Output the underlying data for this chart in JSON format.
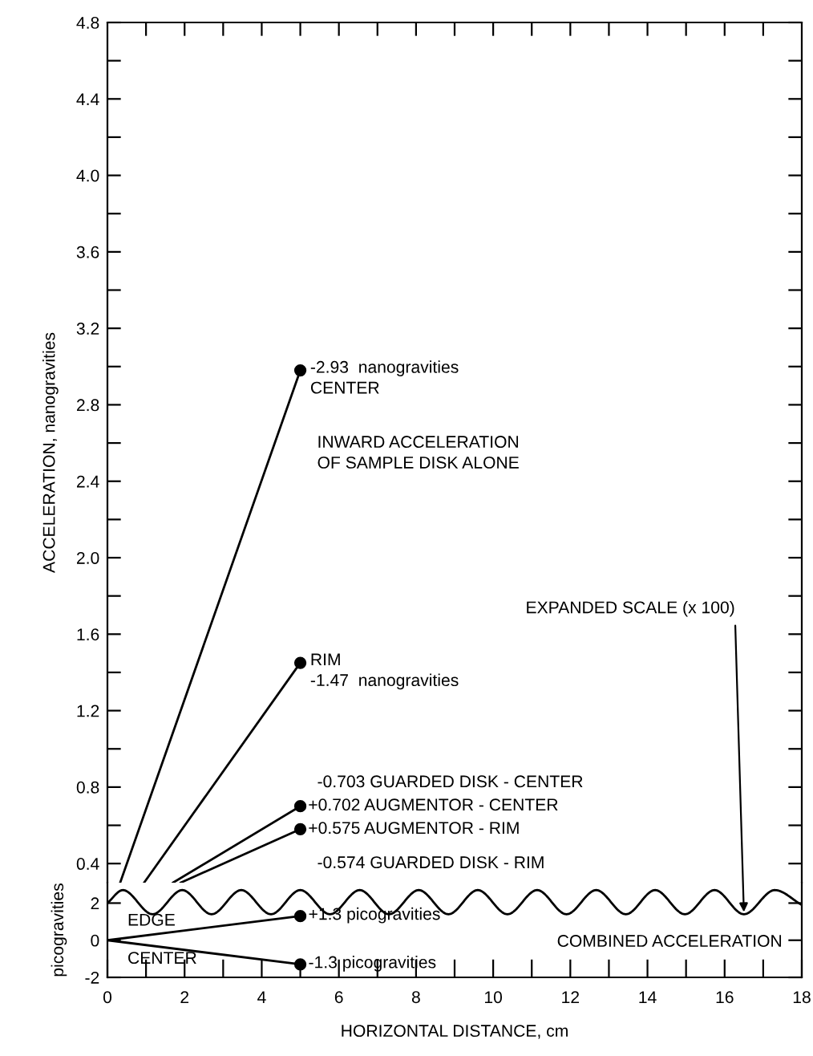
{
  "chart_data": [
    {
      "type": "line",
      "ylabel": "ACCELERATION, nanogravities",
      "xlim": [
        0,
        18
      ],
      "ylim": [
        0.3,
        4.8
      ],
      "tick_labels": "y",
      "grid": false,
      "legend": false,
      "xticks": [
        {
          "value": 1,
          "label": null
        },
        {
          "value": 2,
          "label": null
        },
        {
          "value": 3,
          "label": null
        },
        {
          "value": 4,
          "label": null
        },
        {
          "value": 5,
          "label": null
        },
        {
          "value": 6,
          "label": null
        },
        {
          "value": 7,
          "label": null
        },
        {
          "value": 8,
          "label": null
        },
        {
          "value": 9,
          "label": null
        },
        {
          "value": 10,
          "label": null
        },
        {
          "value": 11,
          "label": null
        },
        {
          "value": 12,
          "label": null
        },
        {
          "value": 13,
          "label": null
        },
        {
          "value": 14,
          "label": null
        },
        {
          "value": 15,
          "label": null
        },
        {
          "value": 16,
          "label": null
        },
        {
          "value": 17,
          "label": null
        }
      ],
      "yticks": [
        0.4,
        {
          "value": 0.6,
          "label": null
        },
        0.8,
        {
          "value": 1.0,
          "label": null
        },
        1.2,
        {
          "value": 1.4,
          "label": null
        },
        1.6,
        {
          "value": 1.8,
          "label": null
        },
        {
          "value": 2.0,
          "label": "2.0"
        },
        {
          "value": 2.2,
          "label": null
        },
        2.4,
        {
          "value": 2.6,
          "label": null
        },
        2.8,
        {
          "value": 3.0,
          "label": null
        },
        3.2,
        {
          "value": 3.4,
          "label": null
        },
        3.6,
        {
          "value": 3.8,
          "label": null
        },
        {
          "value": 4.0,
          "label": "4.0"
        },
        {
          "value": 4.2,
          "label": null
        },
        4.4,
        {
          "value": 4.6,
          "label": null
        },
        4.8
      ],
      "series": [
        {
          "color": "#000000",
          "marker": "circle",
          "x": [
            0.33,
            5
          ],
          "values": [
            0.3,
            2.98
          ]
        },
        {
          "color": "#000000",
          "marker": "circle",
          "x": [
            0.95,
            5
          ],
          "values": [
            0.3,
            1.45
          ]
        },
        {
          "color": "#000000",
          "marker": "circle",
          "x": [
            1.7,
            5
          ],
          "values": [
            0.3,
            0.7
          ]
        },
        {
          "color": "#000000",
          "marker": "circle",
          "x": [
            1.9,
            5
          ],
          "values": [
            0.3,
            0.58
          ]
        }
      ],
      "annotations": [
        "-2.93  nanogravities\nCENTER",
        "INWARD ACCELERATION\nOF SAMPLE DISK ALONE",
        "RIM\n-1.47  nanogravities",
        "-0.703 GUARDED DISK - CENTER",
        "+0.702 AUGMENTOR - CENTER",
        "+0.575 AUGMENTOR - RIM",
        "-0.574 GUARDED DISK - RIM"
      ]
    },
    {
      "type": "line",
      "xlabel": "HORIZONTAL DISTANCE, cm",
      "ylabel": "picogravities",
      "xlim": [
        0,
        18
      ],
      "ylim": [
        -2,
        3.1
      ],
      "grid": false,
      "legend": false,
      "xticks": [
        0,
        {
          "value": 1,
          "label": null
        },
        2,
        {
          "value": 3,
          "label": null
        },
        4,
        {
          "value": 5,
          "label": null
        },
        6,
        {
          "value": 7,
          "label": null
        },
        8,
        {
          "value": 9,
          "label": null
        },
        10,
        {
          "value": 11,
          "label": null
        },
        12,
        {
          "value": 13,
          "label": null
        },
        14,
        {
          "value": 15,
          "label": null
        },
        16,
        {
          "value": 17,
          "label": null
        },
        18
      ],
      "yticks": [
        -2,
        0,
        2
      ],
      "series": [
        {
          "color": "#000000",
          "marker": "none",
          "x": [
            0,
            0.4,
            1.17,
            1.94,
            2.7,
            3.47,
            4.24,
            5.0,
            5.77,
            6.54,
            7.3,
            8.07,
            8.84,
            9.6,
            10.37,
            11.14,
            11.9,
            12.67,
            13.44,
            14.2,
            14.97,
            15.74,
            16.5,
            17.3,
            18
          ],
          "values": [
            2.0,
            2.7,
            1.4,
            2.7,
            1.4,
            2.7,
            1.4,
            2.7,
            1.4,
            2.7,
            1.4,
            2.7,
            1.4,
            2.7,
            1.4,
            2.7,
            1.4,
            2.7,
            1.4,
            2.7,
            1.4,
            2.7,
            1.4,
            2.7,
            1.9
          ]
        },
        {
          "name": "EDGE",
          "color": "#000000",
          "marker": "circle",
          "x": [
            0,
            5
          ],
          "values": [
            0,
            1.3
          ]
        },
        {
          "name": "CENTER",
          "color": "#000000",
          "marker": "circle",
          "x": [
            0,
            5
          ],
          "values": [
            0,
            -1.3
          ]
        }
      ],
      "annotations": [
        "+1.3 picogravities",
        "-1.3 picogravities",
        "COMBINED ACCELERATION",
        "EXPANDED SCALE (x 100)"
      ]
    }
  ]
}
